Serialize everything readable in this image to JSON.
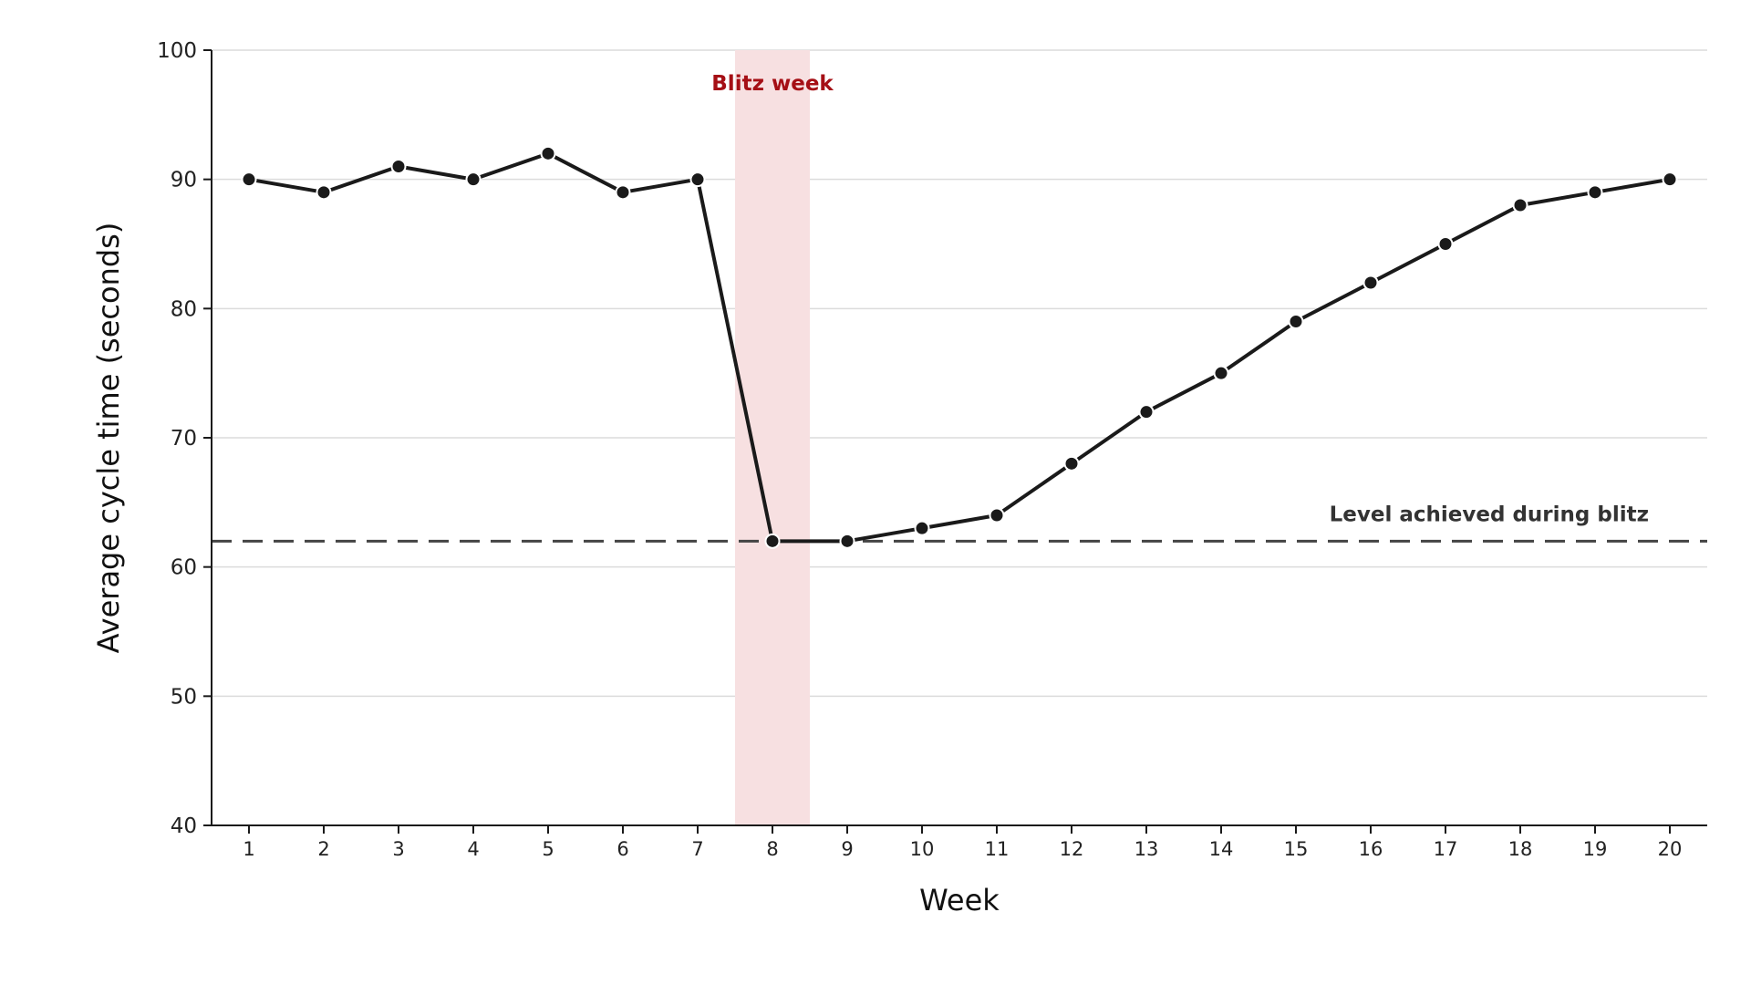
{
  "chart_data": {
    "type": "line",
    "xlabel": "Week",
    "ylabel": "Average cycle time (seconds)",
    "ylim": [
      40,
      100
    ],
    "yticks": [
      40,
      50,
      60,
      70,
      80,
      90,
      100
    ],
    "x": [
      1,
      2,
      3,
      4,
      5,
      6,
      7,
      8,
      9,
      10,
      11,
      12,
      13,
      14,
      15,
      16,
      17,
      18,
      19,
      20
    ],
    "series": [
      {
        "values": [
          90,
          89,
          91,
          90,
          92,
          89,
          90,
          62,
          62,
          63,
          64,
          68,
          72,
          75,
          79,
          82,
          85,
          88,
          89,
          90
        ]
      }
    ],
    "highlight": {
      "label": "Blitz week",
      "from": 7.5,
      "to": 8.5,
      "color": "#f7e0e1",
      "label_color": "#a50f15"
    },
    "reference_line": {
      "label": "Level achieved during blitz",
      "value": 62,
      "style": "dashed",
      "color": "#444444"
    },
    "grid": "horizontal",
    "line_color": "#1a1a1a"
  }
}
